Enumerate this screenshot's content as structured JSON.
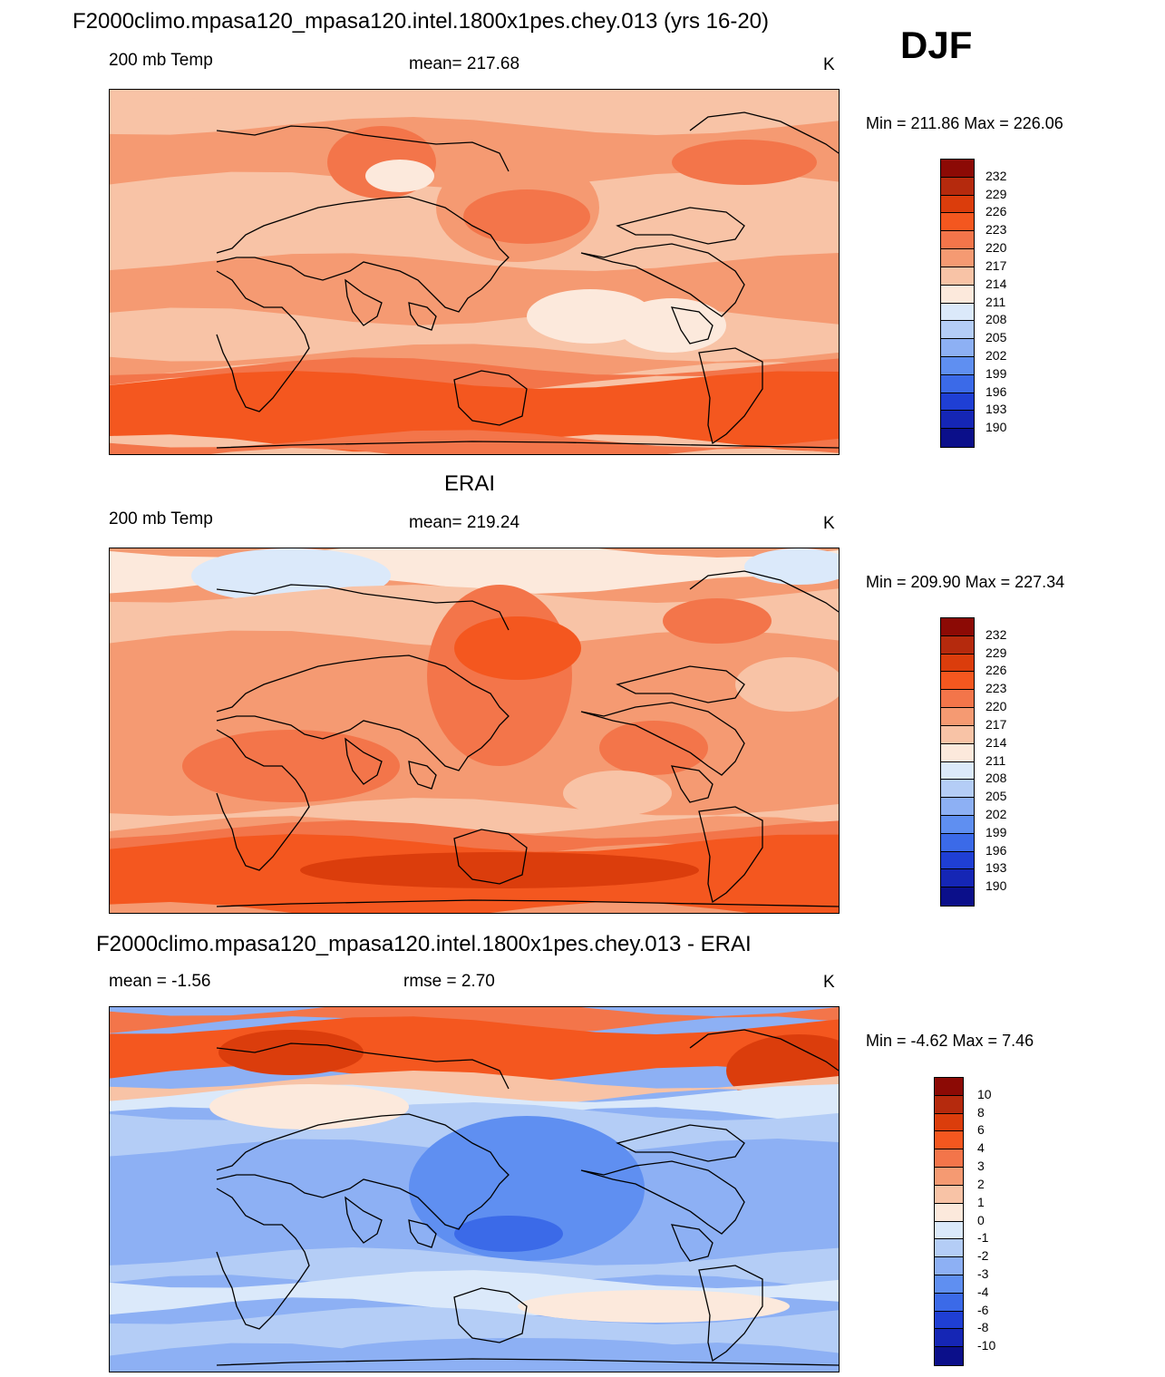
{
  "header": {
    "title": "F2000climo.mpasa120_mpasa120.intel.1800x1pes.chey.013 (yrs 16-20)",
    "season": "DJF"
  },
  "panels": [
    {
      "title": "",
      "left_label": "200 mb Temp",
      "center_label": "mean= 217.68",
      "units": "K",
      "minmax": "Min = 211.86 Max = 226.06"
    },
    {
      "title": "ERAI",
      "left_label": "200 mb Temp",
      "center_label": "mean= 219.24",
      "units": "K",
      "minmax": "Min = 209.90 Max = 227.34"
    },
    {
      "title": "F2000climo.mpasa120_mpasa120.intel.1800x1pes.chey.013 - ERAI",
      "left_label": "mean =  -1.56",
      "center_label": "rmse =   2.70",
      "units": "K",
      "minmax": "Min =  -4.62 Max =   7.46"
    }
  ],
  "colorbars": {
    "abs_levels": [
      "232",
      "229",
      "226",
      "223",
      "220",
      "217",
      "214",
      "211",
      "208",
      "205",
      "202",
      "199",
      "196",
      "193",
      "190"
    ],
    "diff_levels": [
      "10",
      "8",
      "6",
      "4",
      "3",
      "2",
      "1",
      "0",
      "-1",
      "-2",
      "-3",
      "-4",
      "-6",
      "-8",
      "-10"
    ],
    "colors": [
      "#8c0a05",
      "#b52a0d",
      "#db3d0c",
      "#f4571f",
      "#f3754a",
      "#f59a72",
      "#f8c3a6",
      "#fce9dc",
      "#dbe9fa",
      "#b4cdf6",
      "#8db0f4",
      "#5f8ff1",
      "#3b6ae8",
      "#1f3fd4",
      "#1526b5",
      "#0b0f8a"
    ]
  },
  "colors": {
    "ocean_base_abs": "#f8c3a6",
    "ocean_base_diff": "#5f8ff1",
    "coastline": "#000000"
  }
}
